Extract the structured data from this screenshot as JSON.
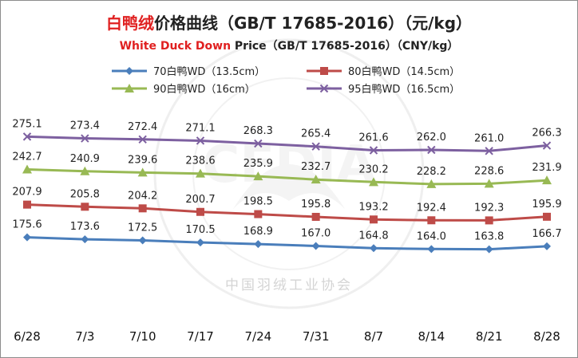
{
  "chart_data": {
    "type": "line",
    "title_zh_red": "白鸭绒",
    "title_zh_black": "价格曲线（GB/T 17685-2016）（元/kg）",
    "subtitle_red": "White Duck Down",
    "subtitle_black": " Price（GB/T 17685-2016）（CNY/kg）",
    "watermark_text": "中国羽绒工业协会",
    "categories": [
      "6/28",
      "7/3",
      "7/10",
      "7/17",
      "7/24",
      "7/31",
      "8/7",
      "8/14",
      "8/21",
      "8/28"
    ],
    "grid": false,
    "legend_position": "top",
    "series": [
      {
        "name": "70白鸭WD（13.5cm）",
        "color": "#4a7ebb",
        "marker": "diamond",
        "values": [
          175.6,
          173.6,
          172.5,
          170.5,
          168.9,
          167.0,
          164.8,
          164.0,
          163.8,
          166.7
        ],
        "labels": [
          "175.6",
          "173.6",
          "172.5",
          "170.5",
          "168.9",
          "167.0",
          "164.8",
          "164.0",
          "163.8",
          "166.7"
        ]
      },
      {
        "name": "80白鸭WD（14.5cm）",
        "color": "#be4b48",
        "marker": "square",
        "values": [
          207.9,
          205.8,
          204.2,
          200.7,
          198.5,
          195.8,
          193.2,
          192.4,
          192.3,
          195.9
        ],
        "labels": [
          "207.9",
          "205.8",
          "204.2",
          "200.7",
          "198.5",
          "195.8",
          "193.2",
          "192.4",
          "192.3",
          "195.9"
        ]
      },
      {
        "name": "90白鸭WD（16cm）",
        "color": "#98b954",
        "marker": "triangle",
        "values": [
          242.7,
          240.9,
          239.6,
          238.6,
          235.9,
          232.7,
          230.2,
          228.2,
          228.6,
          231.9
        ],
        "labels": [
          "242.7",
          "240.9",
          "239.6",
          "238.6",
          "235.9",
          "232.7",
          "230.2",
          "228.2",
          "228.6",
          "231.9"
        ]
      },
      {
        "name": "95白鸭WD（16.5cm）",
        "color": "#7d60a0",
        "marker": "x",
        "values": [
          275.1,
          273.4,
          272.4,
          271.1,
          268.3,
          265.4,
          261.6,
          262.0,
          261.0,
          266.3
        ],
        "labels": [
          "275.1",
          "273.4",
          "272.4",
          "271.1",
          "268.3",
          "265.4",
          "261.6",
          "262.0",
          "261.0",
          "266.3"
        ]
      }
    ]
  }
}
